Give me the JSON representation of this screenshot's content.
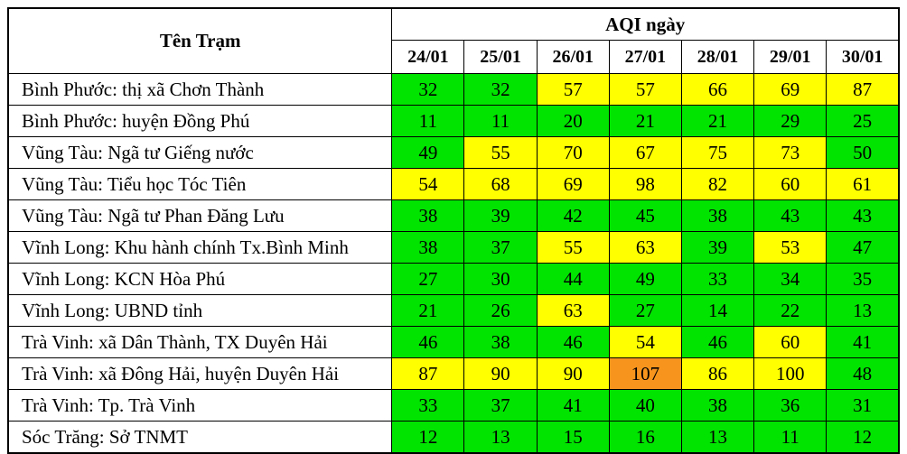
{
  "colors": {
    "green": "#00e400",
    "yellow": "#ffff00",
    "orange": "#f7941d",
    "border": "#000000",
    "text": "#000000"
  },
  "chart_data": {
    "type": "table",
    "row_header": "Tên Trạm",
    "title": "AQI ngày",
    "columns": [
      "24/01",
      "25/01",
      "26/01",
      "27/01",
      "28/01",
      "29/01",
      "30/01"
    ],
    "color_scale": {
      "green": "0-50",
      "yellow": "51-100",
      "orange": "101-150"
    },
    "rows": [
      {
        "station": "Bình Phước: thị xã Chơn Thành",
        "values": [
          32,
          32,
          57,
          57,
          66,
          69,
          87
        ],
        "levels": [
          "green",
          "green",
          "yellow",
          "yellow",
          "yellow",
          "yellow",
          "yellow"
        ]
      },
      {
        "station": "Bình Phước: huyện Đồng Phú",
        "values": [
          11,
          11,
          20,
          21,
          21,
          29,
          25
        ],
        "levels": [
          "green",
          "green",
          "green",
          "green",
          "green",
          "green",
          "green"
        ]
      },
      {
        "station": "Vũng Tàu: Ngã tư Giếng nước",
        "values": [
          49,
          55,
          70,
          67,
          75,
          73,
          50
        ],
        "levels": [
          "green",
          "yellow",
          "yellow",
          "yellow",
          "yellow",
          "yellow",
          "green"
        ]
      },
      {
        "station": "Vũng Tàu: Tiểu học Tóc Tiên",
        "values": [
          54,
          68,
          69,
          98,
          82,
          60,
          61
        ],
        "levels": [
          "yellow",
          "yellow",
          "yellow",
          "yellow",
          "yellow",
          "yellow",
          "yellow"
        ]
      },
      {
        "station": "Vũng Tàu: Ngã tư Phan Đăng Lưu",
        "values": [
          38,
          39,
          42,
          45,
          38,
          43,
          43
        ],
        "levels": [
          "green",
          "green",
          "green",
          "green",
          "green",
          "green",
          "green"
        ]
      },
      {
        "station": "Vĩnh Long: Khu hành chính Tx.Bình Minh",
        "values": [
          38,
          37,
          55,
          63,
          39,
          53,
          47
        ],
        "levels": [
          "green",
          "green",
          "yellow",
          "yellow",
          "green",
          "yellow",
          "green"
        ]
      },
      {
        "station": "Vĩnh Long: KCN Hòa Phú",
        "values": [
          27,
          30,
          44,
          49,
          33,
          34,
          35
        ],
        "levels": [
          "green",
          "green",
          "green",
          "green",
          "green",
          "green",
          "green"
        ]
      },
      {
        "station": "Vĩnh Long: UBND tỉnh",
        "values": [
          21,
          26,
          63,
          27,
          14,
          22,
          13
        ],
        "levels": [
          "green",
          "green",
          "yellow",
          "green",
          "green",
          "green",
          "green"
        ]
      },
      {
        "station": "Trà Vinh: xã Dân Thành, TX Duyên Hải",
        "values": [
          46,
          38,
          46,
          54,
          46,
          60,
          41
        ],
        "levels": [
          "green",
          "green",
          "green",
          "yellow",
          "green",
          "yellow",
          "green"
        ]
      },
      {
        "station": "Trà Vinh: xã Đông Hải, huyện Duyên Hải",
        "values": [
          87,
          90,
          90,
          107,
          86,
          100,
          48
        ],
        "levels": [
          "yellow",
          "yellow",
          "yellow",
          "orange",
          "yellow",
          "yellow",
          "green"
        ]
      },
      {
        "station": "Trà Vinh: Tp. Trà Vinh",
        "values": [
          33,
          37,
          41,
          40,
          38,
          36,
          31
        ],
        "levels": [
          "green",
          "green",
          "green",
          "green",
          "green",
          "green",
          "green"
        ]
      },
      {
        "station": "Sóc Trăng: Sở TNMT",
        "values": [
          12,
          13,
          15,
          16,
          13,
          11,
          12
        ],
        "levels": [
          "green",
          "green",
          "green",
          "green",
          "green",
          "green",
          "green"
        ]
      }
    ]
  }
}
